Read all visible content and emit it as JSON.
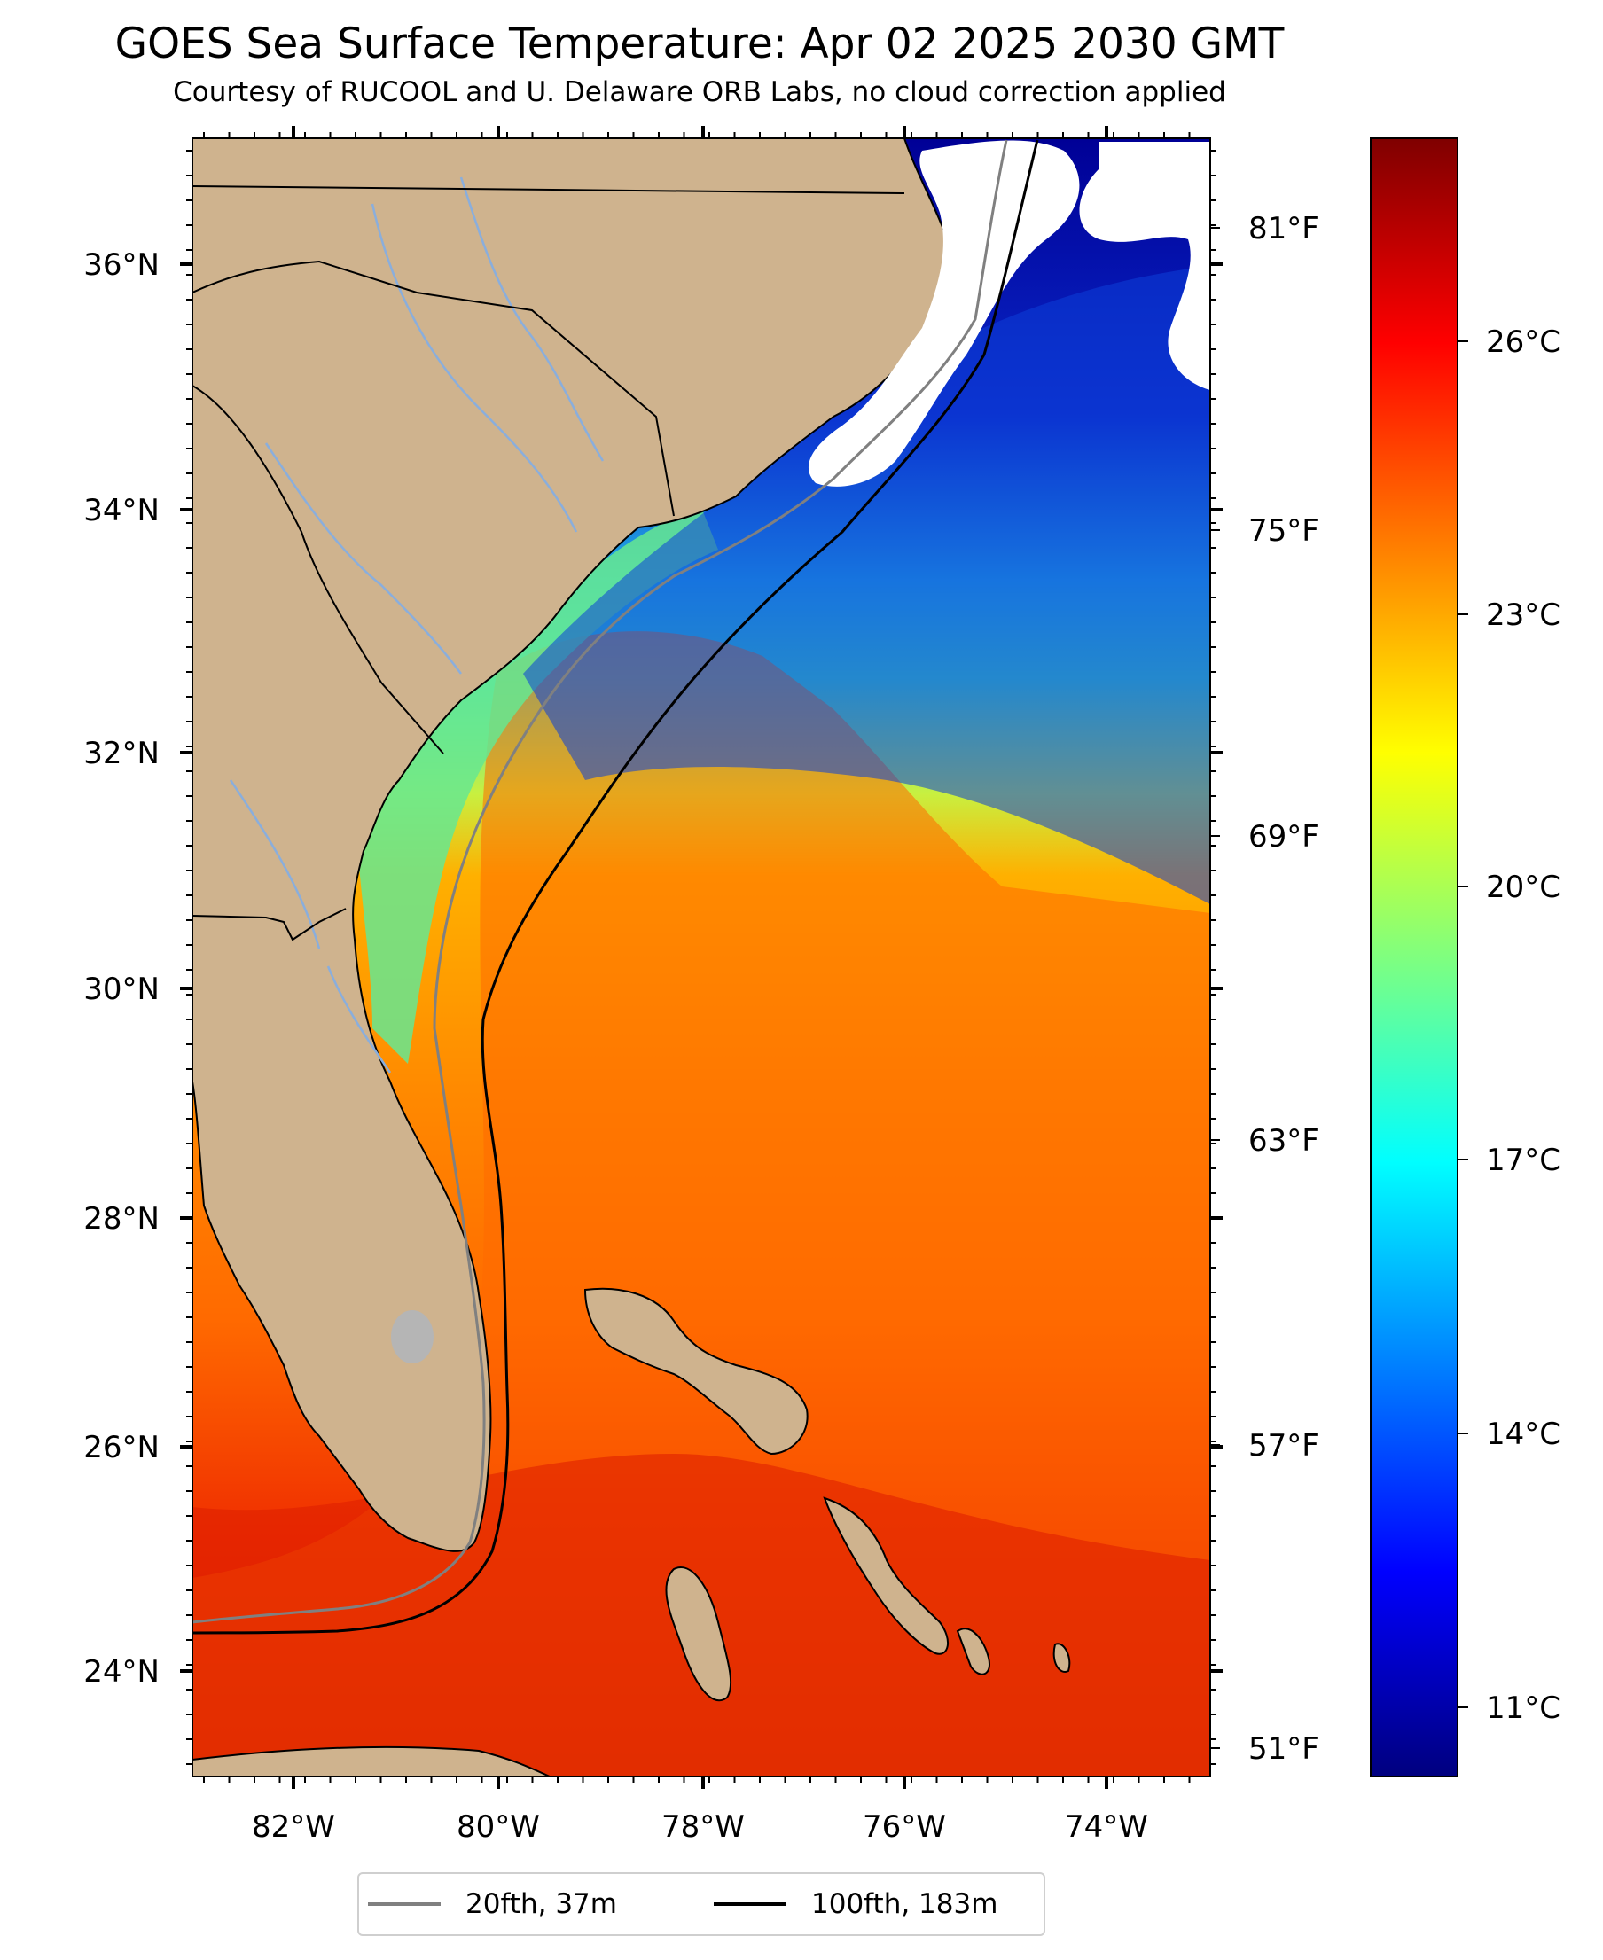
{
  "title": "GOES Sea Surface Temperature: Apr 02 2025 2030 GMT",
  "subtitle": "Courtesy of RUCOOL and U. Delaware ORB Labs, no cloud correction applied",
  "map": {
    "lat_ticks": [
      "36°N",
      "34°N",
      "32°N",
      "30°N",
      "28°N",
      "26°N",
      "24°N"
    ],
    "lon_ticks": [
      "82°W",
      "80°W",
      "78°W",
      "76°W",
      "74°W"
    ],
    "f_ticks": [
      "81°F",
      "75°F",
      "69°F",
      "63°F",
      "57°F",
      "51°F"
    ],
    "extent": {
      "lon": [
        -83,
        -73
      ],
      "lat": [
        23.1,
        37
      ]
    }
  },
  "colorbar": {
    "ticks": [
      "26°C",
      "23°C",
      "20°C",
      "17°C",
      "14°C",
      "11°C"
    ],
    "range_c": [
      10,
      28
    ],
    "colormap": "jet",
    "colors": [
      "#00007f",
      "#0000ff",
      "#007fff",
      "#00ffff",
      "#7fff7f",
      "#ffff00",
      "#ff7f00",
      "#ff0000",
      "#7f0000"
    ]
  },
  "legend": {
    "items": [
      {
        "label": "20fth, 37m",
        "color": "#808080"
      },
      {
        "label": "100fth, 183m",
        "color": "#000000"
      }
    ]
  },
  "colors": {
    "land": "#cfb38e",
    "cloud": "#ffffff",
    "rivers": "#8aaedc",
    "lake": "#b5b5b5"
  }
}
